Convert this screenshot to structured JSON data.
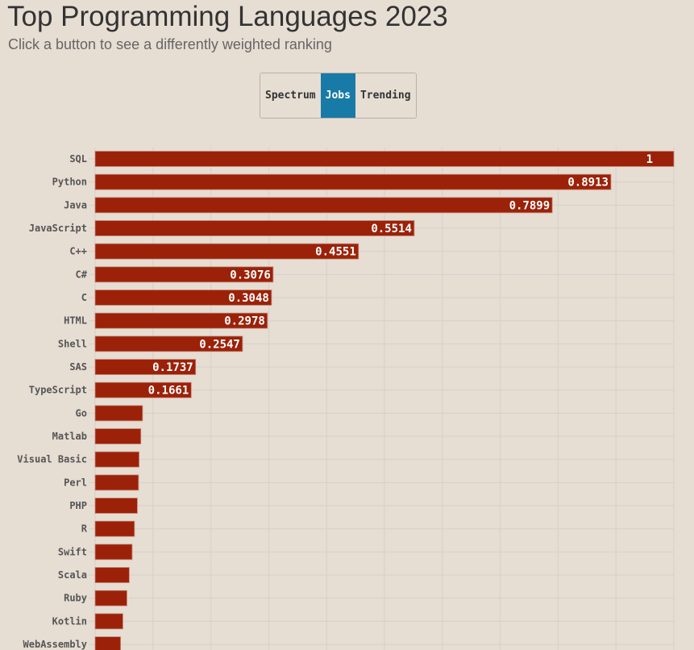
{
  "header": {
    "title": "Top Programming Languages 2023",
    "subtitle": "Click a button to see a differently weighted ranking"
  },
  "buttons": [
    {
      "label": "Spectrum",
      "active": false
    },
    {
      "label": "Jobs",
      "active": true
    },
    {
      "label": "Trending",
      "active": false
    }
  ],
  "colors": {
    "bar": "#9b2209",
    "active_button": "#187aa6",
    "background": "#e6ddd3"
  },
  "chart_data": {
    "type": "bar",
    "orientation": "horizontal",
    "xlim": [
      0,
      1
    ],
    "grid": true,
    "categories": [
      "SQL",
      "Python",
      "Java",
      "JavaScript",
      "C++",
      "C#",
      "C",
      "HTML",
      "Shell",
      "SAS",
      "TypeScript",
      "Go",
      "Matlab",
      "Visual Basic",
      "Perl",
      "PHP",
      "R",
      "Swift",
      "Scala",
      "Ruby",
      "Kotlin",
      "WebAssembly"
    ],
    "values": [
      1,
      0.8913,
      0.7899,
      0.5514,
      0.4551,
      0.3076,
      0.3048,
      0.2978,
      0.2547,
      0.1737,
      0.1661,
      0.082,
      0.079,
      0.076,
      0.075,
      0.073,
      0.068,
      0.064,
      0.059,
      0.055,
      0.048,
      0.044
    ],
    "value_labels": [
      "1",
      "0.8913",
      "0.7899",
      "0.5514",
      "0.4551",
      "0.3076",
      "0.3048",
      "0.2978",
      "0.2547",
      "0.1737",
      "0.1661",
      "",
      "",
      "",
      "",
      "",
      "",
      "",
      "",
      "",
      "",
      ""
    ]
  }
}
